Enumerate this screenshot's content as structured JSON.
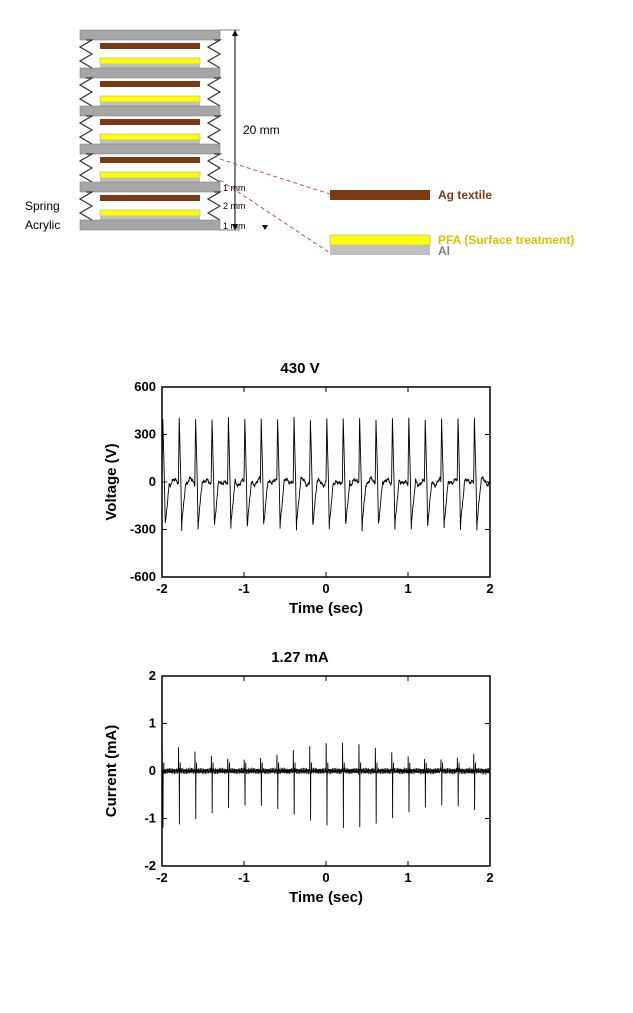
{
  "diagram": {
    "labels": {
      "spring": "Spring",
      "acrylic": "Acrylic",
      "height": "20 mm",
      "gap1": "1 mm",
      "gap2": "2 mm",
      "gap3": "1 mm",
      "ag": "Ag textile",
      "pfa": "PFA (Surface treatment)",
      "al": "Al"
    },
    "colors": {
      "plate": "#a6a6a6",
      "brown": "#7d3a12",
      "yellow": "#ffff00",
      "al": "#bfbfbf",
      "spring": "#333333",
      "leader": "#c94f4f",
      "text": "#000000",
      "ag_text": "#7d3a12",
      "pfa_text": "#d4c400",
      "al_text": "#808080"
    },
    "label_fontsize": 12
  },
  "voltage_chart": {
    "title": "430 V",
    "ylabel": "Voltage (V)",
    "xlabel": "Time (sec)",
    "xlim": [
      -2,
      2
    ],
    "ylim": [
      -600,
      600
    ],
    "xticks": [
      -2,
      -1,
      0,
      1,
      2
    ],
    "yticks": [
      -600,
      -300,
      0,
      300,
      600
    ],
    "title_fontsize": 15,
    "label_fontsize": 15,
    "tick_fontsize": 13,
    "color": "#000000",
    "bg": "#ffffff",
    "freq": 5,
    "pos_peak": 400,
    "neg_peak": -300,
    "noise": 40
  },
  "current_chart": {
    "title": "1.27 mA",
    "ylabel": "Current (mA)",
    "xlabel": "Time (sec)",
    "xlim": [
      -2,
      2
    ],
    "ylim": [
      -2,
      2
    ],
    "xticks": [
      -2,
      -1,
      0,
      1,
      2
    ],
    "yticks": [
      -2,
      -1,
      0,
      1,
      2
    ],
    "title_fontsize": 15,
    "label_fontsize": 15,
    "tick_fontsize": 13,
    "color": "#000000",
    "bg": "#ffffff",
    "freq": 5,
    "pos_peak": 0.9,
    "neg_peak": -1.2
  }
}
